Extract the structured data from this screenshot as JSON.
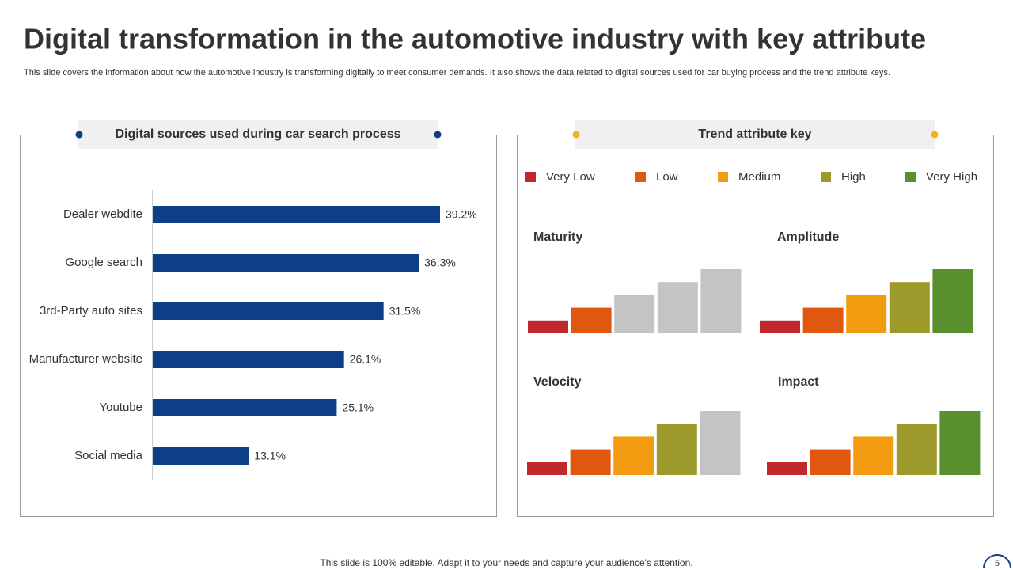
{
  "header": {
    "title": "Digital transformation in the automotive industry with key attribute",
    "subtitle": "This slide covers the information about how the automotive industry is transforming digitally  to meet consumer demands. It also shows the data related to digital sources used for car buying process and the trend attribute keys."
  },
  "chart_data": [
    {
      "type": "hbar",
      "title": "Digital sources  used during car search process",
      "categories": [
        "Dealer webdite",
        "Google search",
        "3rd-Party auto sites",
        "Manufacturer website",
        "Youtube",
        "Social media"
      ],
      "values": [
        39.2,
        36.3,
        31.5,
        26.1,
        25.1,
        13.1
      ],
      "value_labels": [
        "39.2%",
        "36.3%",
        "31.5%",
        "26.1%",
        "25.1%",
        "13.1%"
      ],
      "color": "#0d3f86"
    },
    {
      "type": "bar",
      "title": "Maturity",
      "values": [
        1,
        2,
        3,
        4,
        5
      ],
      "ylim": [
        0,
        5
      ],
      "colors": [
        "#c0282c",
        "#e0570f",
        "#c4c4c4",
        "#c4c4c4",
        "#c4c4c4"
      ]
    },
    {
      "type": "bar",
      "title": "Amplitude",
      "values": [
        1,
        2,
        3,
        4,
        5
      ],
      "ylim": [
        0,
        5
      ],
      "colors": [
        "#c0282c",
        "#e0570f",
        "#f39c12",
        "#9c9a2b",
        "#5a8f2f"
      ]
    },
    {
      "type": "bar",
      "title": "Velocity",
      "values": [
        1,
        2,
        3,
        4,
        5
      ],
      "ylim": [
        0,
        5
      ],
      "colors": [
        "#c0282c",
        "#e0570f",
        "#f39c12",
        "#9c9a2b",
        "#c4c4c4"
      ]
    },
    {
      "type": "bar",
      "title": "Impact",
      "values": [
        1,
        2,
        3,
        4,
        5
      ],
      "ylim": [
        0,
        5
      ],
      "colors": [
        "#c0282c",
        "#e0570f",
        "#f39c12",
        "#9c9a2b",
        "#5a8f2f"
      ]
    }
  ],
  "legend": {
    "title": "Trend attribute key",
    "items": [
      {
        "name": "Very Low",
        "color": "#c0282c"
      },
      {
        "name": "Low",
        "color": "#e0570f"
      },
      {
        "name": "Medium",
        "color": "#f39c12"
      },
      {
        "name": "High",
        "color": "#9c9a2b"
      },
      {
        "name": "Very High",
        "color": "#5a8f2f"
      }
    ]
  },
  "footer": {
    "note": "This slide is 100% editable. Adapt it to your needs and capture your audience's attention.",
    "page": 5
  }
}
